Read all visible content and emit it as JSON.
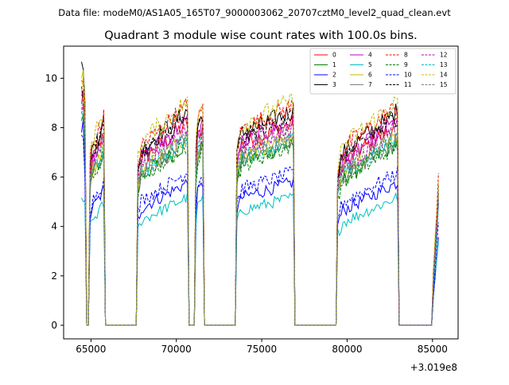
{
  "header": {
    "data_file": "Data file: modeM0/AS1A05_165T07_9000003062_20707cztM0_level2_quad_clean.evt"
  },
  "chart_data": {
    "type": "line",
    "title": "Quadrant 3 module wise count rates with 100.0s bins.",
    "xlabel": "",
    "ylabel": "",
    "x_offset_label": "+3.019e8",
    "xlim": [
      63400,
      86500
    ],
    "ylim": [
      -0.55,
      11.3
    ],
    "xticks": [
      65000,
      70000,
      75000,
      80000,
      85000
    ],
    "xtick_labels": [
      "65000",
      "70000",
      "75000",
      "80000",
      "85000"
    ],
    "yticks": [
      0,
      2,
      4,
      6,
      8,
      10
    ],
    "ytick_labels": [
      "0",
      "2",
      "4",
      "6",
      "8",
      "10"
    ],
    "legend_position": "upper right",
    "bin_seconds": 100,
    "active_intervals": [
      [
        64450,
        64650,
        0.9,
        1.0
      ],
      [
        64900,
        65800,
        0.78,
        0.95
      ],
      [
        67700,
        70700,
        0.8,
        1.0
      ],
      [
        71150,
        71600,
        0.9,
        1.0
      ],
      [
        73500,
        76900,
        0.88,
        1.0
      ],
      [
        79400,
        83000,
        0.78,
        1.0
      ],
      [
        85000,
        85350,
        0.15,
        0.65
      ]
    ],
    "series": [
      {
        "name": "0",
        "color": "#ff0000",
        "dash": "solid",
        "level": 8.2,
        "peak": 9.5
      },
      {
        "name": "1",
        "color": "#008000",
        "dash": "solid",
        "level": 7.4,
        "peak": 8.8
      },
      {
        "name": "2",
        "color": "#0000ff",
        "dash": "solid",
        "level": 5.8,
        "peak": 8.4
      },
      {
        "name": "3",
        "color": "#000000",
        "dash": "solid",
        "level": 8.7,
        "peak": 10.8
      },
      {
        "name": "4",
        "color": "#bf00bf",
        "dash": "solid",
        "level": 8.3,
        "peak": 9.7
      },
      {
        "name": "5",
        "color": "#00bfbf",
        "dash": "solid",
        "level": 5.2,
        "peak": 5.2
      },
      {
        "name": "6",
        "color": "#bfbf00",
        "dash": "solid",
        "level": 7.7,
        "peak": 10.4
      },
      {
        "name": "7",
        "color": "#808080",
        "dash": "solid",
        "level": 7.5,
        "peak": 9.6
      },
      {
        "name": "8",
        "color": "#ff0000",
        "dash": "dashed",
        "level": 8.9,
        "peak": 10.3
      },
      {
        "name": "9",
        "color": "#008000",
        "dash": "dashed",
        "level": 7.3,
        "peak": 8.8
      },
      {
        "name": "10",
        "color": "#0000ff",
        "dash": "dashed",
        "level": 6.2,
        "peak": 8.1
      },
      {
        "name": "11",
        "color": "#000000",
        "dash": "dashed",
        "level": 8.5,
        "peak": 9.8
      },
      {
        "name": "12",
        "color": "#bf00bf",
        "dash": "dashed",
        "level": 8.0,
        "peak": 9.2
      },
      {
        "name": "13",
        "color": "#00bfbf",
        "dash": "dashed",
        "level": 7.6,
        "peak": 8.9
      },
      {
        "name": "14",
        "color": "#bfbf00",
        "dash": "dashed",
        "level": 9.1,
        "peak": 10.2
      },
      {
        "name": "15",
        "color": "#808080",
        "dash": "dashed",
        "level": 7.9,
        "peak": 9.3
      }
    ]
  }
}
